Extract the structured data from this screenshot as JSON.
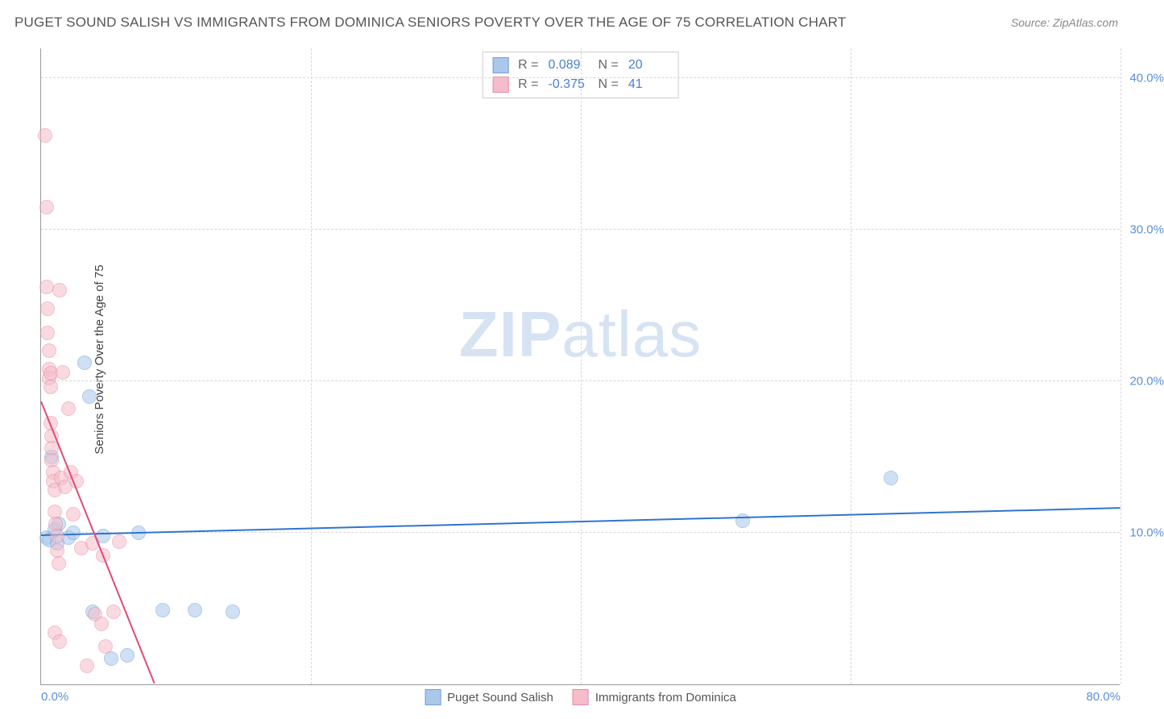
{
  "title": "PUGET SOUND SALISH VS IMMIGRANTS FROM DOMINICA SENIORS POVERTY OVER THE AGE OF 75 CORRELATION CHART",
  "source": "Source: ZipAtlas.com",
  "ylabel": "Seniors Poverty Over the Age of 75",
  "watermark_bold": "ZIP",
  "watermark_rest": "atlas",
  "chart": {
    "type": "scatter",
    "xlim": [
      0,
      80
    ],
    "ylim": [
      0,
      42
    ],
    "xtick_labels": [
      "0.0%",
      "80.0%"
    ],
    "xtick_positions": [
      0,
      80
    ],
    "xgrid_positions": [
      20,
      40,
      60,
      80
    ],
    "ytick_labels": [
      "10.0%",
      "20.0%",
      "30.0%",
      "40.0%"
    ],
    "ytick_positions": [
      10,
      20,
      30,
      40
    ],
    "grid_color": "#d8d8d8",
    "background_color": "#ffffff",
    "axis_color": "#999999",
    "tick_label_color": "#5b8fd6",
    "point_radius": 9,
    "point_opacity": 0.55,
    "series": [
      {
        "name": "Puget Sound Salish",
        "fill_color": "#a9c8ec",
        "stroke_color": "#6fa0d8",
        "r_value": "0.089",
        "n_value": "20",
        "trend": {
          "x1": 0,
          "y1": 9.8,
          "x2": 80,
          "y2": 11.6,
          "color": "#2f74d0",
          "width": 2
        },
        "points": [
          [
            0.4,
            9.7
          ],
          [
            0.6,
            9.5
          ],
          [
            0.8,
            15.0
          ],
          [
            1.0,
            10.2
          ],
          [
            1.2,
            9.3
          ],
          [
            1.3,
            10.6
          ],
          [
            2.0,
            9.7
          ],
          [
            2.4,
            10.0
          ],
          [
            3.2,
            21.2
          ],
          [
            3.6,
            19.0
          ],
          [
            3.8,
            4.8
          ],
          [
            4.6,
            9.8
          ],
          [
            5.2,
            1.7
          ],
          [
            6.4,
            1.9
          ],
          [
            7.2,
            10.0
          ],
          [
            9.0,
            4.9
          ],
          [
            11.4,
            4.9
          ],
          [
            14.2,
            4.8
          ],
          [
            52.0,
            10.8
          ],
          [
            63.0,
            13.6
          ]
        ]
      },
      {
        "name": "Immigrants from Dominica",
        "fill_color": "#f5bcca",
        "stroke_color": "#e88aa2",
        "r_value": "-0.375",
        "n_value": "41",
        "trend": {
          "x1": 0,
          "y1": 18.6,
          "x2": 8.4,
          "y2": 0,
          "color": "#e24a77",
          "width": 2
        },
        "points": [
          [
            0.3,
            36.2
          ],
          [
            0.4,
            31.5
          ],
          [
            0.4,
            26.2
          ],
          [
            0.5,
            24.8
          ],
          [
            0.5,
            23.2
          ],
          [
            0.6,
            22.0
          ],
          [
            0.6,
            20.8
          ],
          [
            0.6,
            20.2
          ],
          [
            0.7,
            20.5
          ],
          [
            0.7,
            19.6
          ],
          [
            0.7,
            17.2
          ],
          [
            0.8,
            16.4
          ],
          [
            0.8,
            15.6
          ],
          [
            0.8,
            14.8
          ],
          [
            0.9,
            14.0
          ],
          [
            0.9,
            13.4
          ],
          [
            1.0,
            12.8
          ],
          [
            1.0,
            11.4
          ],
          [
            1.1,
            10.6
          ],
          [
            1.2,
            9.8
          ],
          [
            1.2,
            8.8
          ],
          [
            1.3,
            8.0
          ],
          [
            1.4,
            26.0
          ],
          [
            1.5,
            13.6
          ],
          [
            1.6,
            20.6
          ],
          [
            1.8,
            13.0
          ],
          [
            2.0,
            18.2
          ],
          [
            2.2,
            14.0
          ],
          [
            2.4,
            11.2
          ],
          [
            2.6,
            13.4
          ],
          [
            3.0,
            9.0
          ],
          [
            3.4,
            1.2
          ],
          [
            3.8,
            9.3
          ],
          [
            4.0,
            4.6
          ],
          [
            4.5,
            4.0
          ],
          [
            4.6,
            8.5
          ],
          [
            4.8,
            2.5
          ],
          [
            5.4,
            4.8
          ],
          [
            5.8,
            9.4
          ],
          [
            1.0,
            3.4
          ],
          [
            1.4,
            2.8
          ]
        ]
      }
    ],
    "stats_box": {
      "r_label": "R =",
      "n_label": "N ="
    },
    "legend_label_1": "Puget Sound Salish",
    "legend_label_2": "Immigrants from Dominica"
  }
}
